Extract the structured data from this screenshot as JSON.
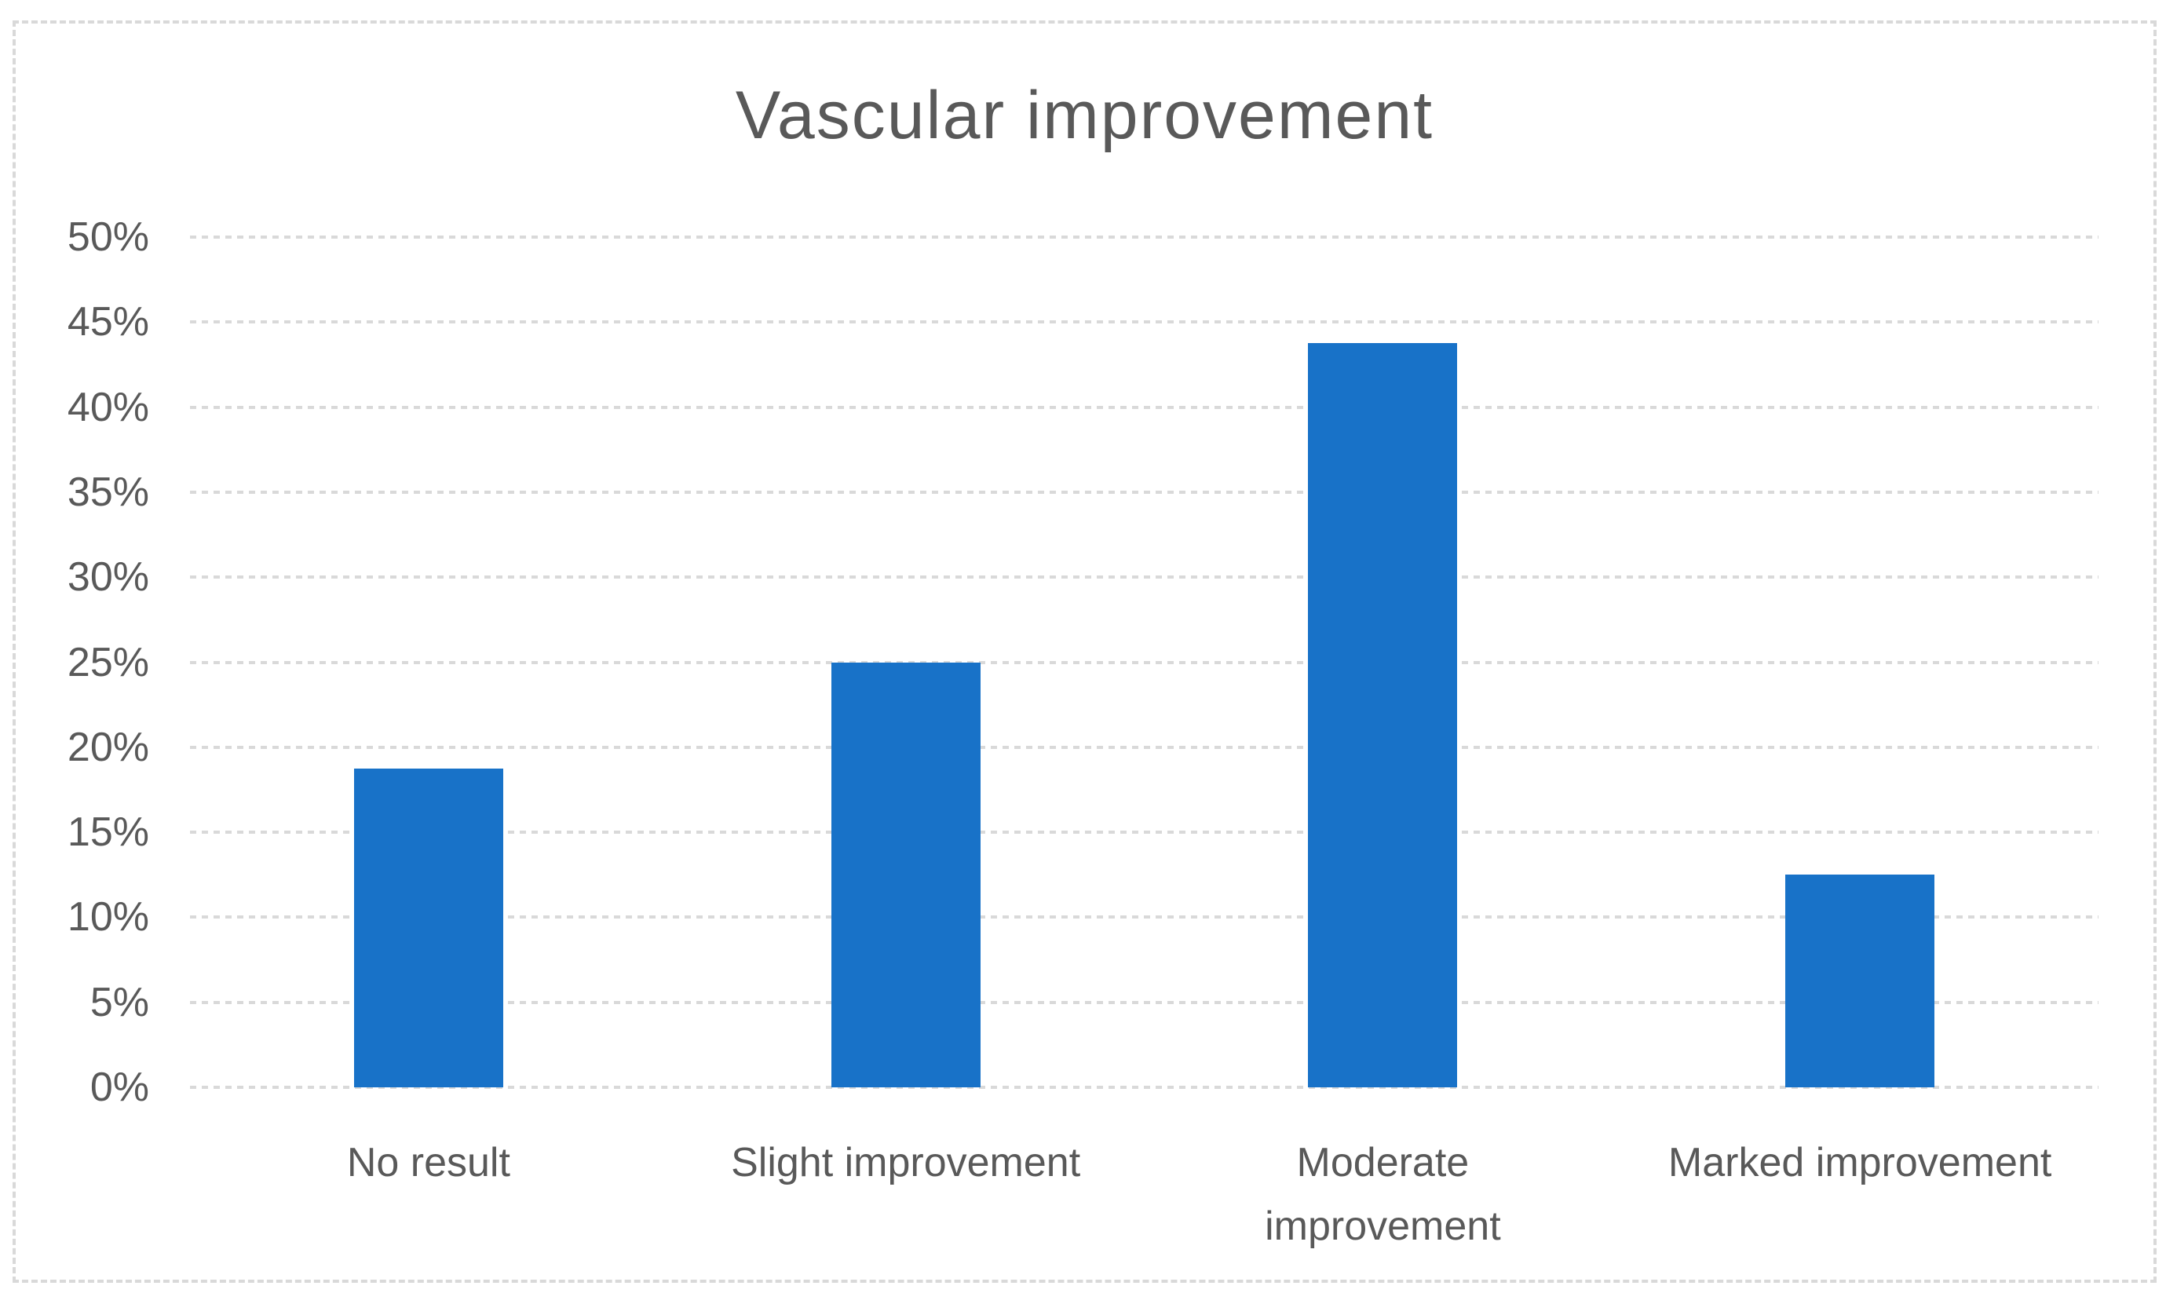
{
  "chart_data": {
    "type": "bar",
    "title": "Vascular improvement",
    "categories": [
      "No result",
      "Slight improvement",
      "Moderate\nimprovement",
      "Marked improvement"
    ],
    "values": [
      18.75,
      25,
      43.75,
      12.5
    ],
    "unit": "%",
    "xlabel": "",
    "ylabel": "",
    "ylim": [
      0,
      50
    ],
    "ytick_step": 5,
    "yticklabels": [
      "0%",
      "5%",
      "10%",
      "15%",
      "20%",
      "25%",
      "30%",
      "35%",
      "40%",
      "45%",
      "50%"
    ],
    "grid": "horizontal dashed gridlines at 5% intervals",
    "legend": "none",
    "colors": {
      "bar": "#1872c8",
      "gridline": "#d9d9d9",
      "text": "#595959",
      "frame_border": "#d9d9d9",
      "background": "#ffffff"
    }
  }
}
